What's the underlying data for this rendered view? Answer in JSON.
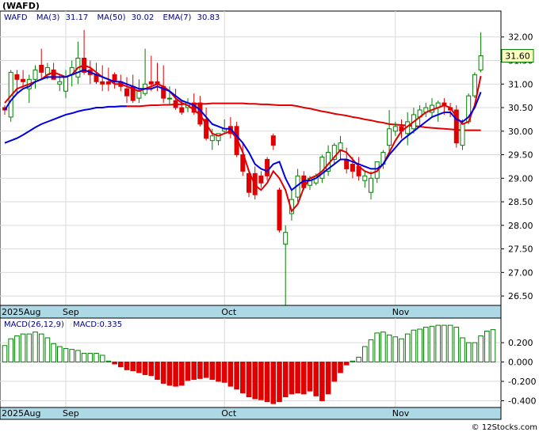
{
  "chart_data": [
    {
      "type": "candlestick",
      "title": "(WAFD)",
      "legend": {
        "symbol": "WAFD",
        "ma3_label": "MA(3)",
        "ma3_value": "31.17",
        "ma50_label": "MA(50)",
        "ma50_value": "30.02",
        "ema7_label": "EMA(7)",
        "ema7_value": "30.83"
      },
      "last_price_label": "31.60",
      "ylim": [
        26.3,
        32.55
      ],
      "ytick_labels": [
        "32.00",
        "31.50",
        "31.00",
        "30.50",
        "30.00",
        "29.50",
        "29.00",
        "28.50",
        "28.00",
        "27.50",
        "27.00",
        "26.50"
      ],
      "ytick_values": [
        32.0,
        31.5,
        31.0,
        30.5,
        30.0,
        29.5,
        29.0,
        28.5,
        28.0,
        27.5,
        27.0,
        26.5
      ],
      "ohlc": [
        [
          30.5,
          30.55,
          30.35,
          30.45
        ],
        [
          30.3,
          31.3,
          30.2,
          31.25
        ],
        [
          31.2,
          31.3,
          30.8,
          31.1
        ],
        [
          31.1,
          31.3,
          30.9,
          31.05
        ],
        [
          30.9,
          31.2,
          30.6,
          31.1
        ],
        [
          31.1,
          31.4,
          30.9,
          31.3
        ],
        [
          31.4,
          31.75,
          31.1,
          31.25
        ],
        [
          31.2,
          31.45,
          31.1,
          31.35
        ],
        [
          31.3,
          31.45,
          31.1,
          31.1
        ],
        [
          31.0,
          31.2,
          30.85,
          31.05
        ],
        [
          30.85,
          31.3,
          30.7,
          31.15
        ],
        [
          31.2,
          31.5,
          30.95,
          31.35
        ],
        [
          31.15,
          31.9,
          31.0,
          31.55
        ],
        [
          31.55,
          32.15,
          31.2,
          31.25
        ],
        [
          31.3,
          31.5,
          31.0,
          31.2
        ],
        [
          31.2,
          31.45,
          31.0,
          31.05
        ],
        [
          31.05,
          31.4,
          30.85,
          31.0
        ],
        [
          31.05,
          31.35,
          30.85,
          31.0
        ],
        [
          31.2,
          31.25,
          30.9,
          31.05
        ],
        [
          31.05,
          31.2,
          30.85,
          30.95
        ],
        [
          30.9,
          31.15,
          30.6,
          30.75
        ],
        [
          30.95,
          31.2,
          30.6,
          30.65
        ],
        [
          30.7,
          31.1,
          30.6,
          30.85
        ],
        [
          30.8,
          31.75,
          30.75,
          31.0
        ],
        [
          31.05,
          31.6,
          30.85,
          31.0
        ],
        [
          31.05,
          31.45,
          30.85,
          31.0
        ],
        [
          30.95,
          31.4,
          30.6,
          30.7
        ],
        [
          30.7,
          30.95,
          30.55,
          30.7
        ],
        [
          30.65,
          30.9,
          30.45,
          30.5
        ],
        [
          30.5,
          30.65,
          30.35,
          30.4
        ],
        [
          30.5,
          30.7,
          30.4,
          30.6
        ],
        [
          30.6,
          30.8,
          30.35,
          30.4
        ],
        [
          30.6,
          30.75,
          30.1,
          30.15
        ],
        [
          30.25,
          30.5,
          29.8,
          29.85
        ],
        [
          29.8,
          30.05,
          29.6,
          29.9
        ],
        [
          29.8,
          29.95,
          29.7,
          29.95
        ],
        [
          30.0,
          30.25,
          29.95,
          30.05
        ],
        [
          30.1,
          30.3,
          29.85,
          29.95
        ],
        [
          30.1,
          30.2,
          29.45,
          29.5
        ],
        [
          29.5,
          29.75,
          29.05,
          29.15
        ],
        [
          29.1,
          29.2,
          28.6,
          28.7
        ],
        [
          29.1,
          29.25,
          28.55,
          28.65
        ],
        [
          29.05,
          29.15,
          28.8,
          28.9
        ],
        [
          29.4,
          29.45,
          28.95,
          29.05
        ],
        [
          29.9,
          29.95,
          29.6,
          29.7
        ],
        [
          28.75,
          28.8,
          27.85,
          27.9
        ],
        [
          27.6,
          28.0,
          26.25,
          27.85
        ],
        [
          28.25,
          28.75,
          28.1,
          28.55
        ],
        [
          28.6,
          29.2,
          28.5,
          29.05
        ],
        [
          29.05,
          29.15,
          28.75,
          28.8
        ],
        [
          28.85,
          29.05,
          28.75,
          29.0
        ],
        [
          28.9,
          29.1,
          28.85,
          29.05
        ],
        [
          29.0,
          29.5,
          28.9,
          29.45
        ],
        [
          29.15,
          29.7,
          29.05,
          29.55
        ],
        [
          29.4,
          29.75,
          29.3,
          29.7
        ],
        [
          29.6,
          29.9,
          29.4,
          29.75
        ],
        [
          29.4,
          29.65,
          29.1,
          29.2
        ],
        [
          29.3,
          29.45,
          29.0,
          29.15
        ],
        [
          29.25,
          29.45,
          28.95,
          29.05
        ],
        [
          28.95,
          29.15,
          28.8,
          29.05
        ],
        [
          28.7,
          29.15,
          28.55,
          29.0
        ],
        [
          29.0,
          29.35,
          28.9,
          29.35
        ],
        [
          29.3,
          29.6,
          29.2,
          29.55
        ],
        [
          29.7,
          30.45,
          29.55,
          30.05
        ],
        [
          30.0,
          30.2,
          29.9,
          30.1
        ],
        [
          30.1,
          30.25,
          29.85,
          30.0
        ],
        [
          29.95,
          30.4,
          29.7,
          30.2
        ],
        [
          30.05,
          30.5,
          29.95,
          30.35
        ],
        [
          30.3,
          30.55,
          30.1,
          30.45
        ],
        [
          30.4,
          30.6,
          30.3,
          30.5
        ],
        [
          30.4,
          30.7,
          30.3,
          30.55
        ],
        [
          30.5,
          30.65,
          30.2,
          30.6
        ],
        [
          30.6,
          30.7,
          30.35,
          30.55
        ],
        [
          30.5,
          30.6,
          30.3,
          30.45
        ],
        [
          30.45,
          30.55,
          29.65,
          29.75
        ],
        [
          29.7,
          30.25,
          29.6,
          30.15
        ],
        [
          30.2,
          30.8,
          30.15,
          30.75
        ],
        [
          30.75,
          31.25,
          30.7,
          31.2
        ],
        [
          31.3,
          32.1,
          31.25,
          31.6
        ]
      ],
      "ma3": [
        30.6,
        30.75,
        30.9,
        30.95,
        31.0,
        31.05,
        31.1,
        31.2,
        31.25,
        31.2,
        31.15,
        31.2,
        31.35,
        31.4,
        31.35,
        31.25,
        31.15,
        31.1,
        31.0,
        31.0,
        30.95,
        30.9,
        30.85,
        30.9,
        30.95,
        31.0,
        30.95,
        30.85,
        30.7,
        30.6,
        30.55,
        30.45,
        30.35,
        30.15,
        29.95,
        29.9,
        29.95,
        30.0,
        29.85,
        29.55,
        29.15,
        28.85,
        28.75,
        28.9,
        29.15,
        29.0,
        28.75,
        28.3,
        28.45,
        28.8,
        29.0,
        29.05,
        29.15,
        29.3,
        29.45,
        29.6,
        29.55,
        29.4,
        29.25,
        29.15,
        29.1,
        29.15,
        29.3,
        29.55,
        29.8,
        30.0,
        30.1,
        30.2,
        30.3,
        30.4,
        30.45,
        30.5,
        30.55,
        30.5,
        30.3,
        30.15,
        30.2,
        30.55,
        31.17
      ],
      "ema7": [
        30.45,
        30.65,
        30.8,
        30.9,
        30.95,
        31.05,
        31.1,
        31.15,
        31.15,
        31.15,
        31.15,
        31.2,
        31.25,
        31.3,
        31.25,
        31.2,
        31.15,
        31.1,
        31.05,
        31.05,
        31.0,
        30.95,
        30.9,
        30.9,
        30.9,
        30.95,
        30.9,
        30.85,
        30.75,
        30.65,
        30.6,
        30.55,
        30.45,
        30.3,
        30.15,
        30.1,
        30.05,
        30.05,
        29.9,
        29.75,
        29.55,
        29.3,
        29.2,
        29.15,
        29.3,
        29.35,
        29.0,
        28.75,
        28.85,
        28.95,
        28.95,
        29.0,
        29.1,
        29.2,
        29.3,
        29.4,
        29.4,
        29.35,
        29.3,
        29.25,
        29.2,
        29.2,
        29.3,
        29.5,
        29.65,
        29.8,
        29.9,
        30.0,
        30.1,
        30.2,
        30.3,
        30.35,
        30.4,
        30.4,
        30.25,
        30.2,
        30.3,
        30.5,
        30.83
      ],
      "ma50": [
        29.75,
        29.8,
        29.85,
        29.92,
        30.0,
        30.08,
        30.15,
        30.2,
        30.25,
        30.3,
        30.35,
        30.38,
        30.42,
        30.45,
        30.47,
        30.5,
        30.5,
        30.52,
        30.52,
        30.53,
        30.53,
        30.53,
        30.53,
        30.54,
        30.55,
        30.55,
        30.56,
        30.56,
        30.57,
        30.57,
        30.58,
        30.58,
        30.58,
        30.58,
        30.59,
        30.59,
        30.59,
        30.59,
        30.59,
        30.59,
        30.58,
        30.58,
        30.57,
        30.57,
        30.56,
        30.55,
        30.55,
        30.55,
        30.53,
        30.5,
        30.48,
        30.45,
        30.42,
        30.4,
        30.37,
        30.35,
        30.33,
        30.3,
        30.28,
        30.25,
        30.23,
        30.2,
        30.18,
        30.15,
        30.14,
        30.13,
        30.12,
        30.11,
        30.1,
        30.08,
        30.07,
        30.06,
        30.05,
        30.04,
        30.03,
        30.02,
        30.02,
        30.02,
        30.02
      ],
      "xtick_labels": [
        {
          "label": "2025Aug",
          "index": 0
        },
        {
          "label": "Sep",
          "index": 10
        },
        {
          "label": "Oct",
          "index": 36
        },
        {
          "label": "Nov",
          "index": 64
        }
      ]
    },
    {
      "type": "bar",
      "title": "MACD(26,12,9)",
      "value_label": "MACD:0.335",
      "ylim": [
        -0.47,
        0.34
      ],
      "ytick_labels": [
        "0.200",
        "0.000",
        "-0.200",
        "-0.400"
      ],
      "ytick_values": [
        0.2,
        0.0,
        -0.2,
        -0.4
      ],
      "values": [
        0.17,
        0.24,
        0.27,
        0.29,
        0.29,
        0.31,
        0.29,
        0.25,
        0.19,
        0.16,
        0.14,
        0.13,
        0.12,
        0.09,
        0.09,
        0.09,
        0.07,
        0.01,
        -0.02,
        -0.05,
        -0.08,
        -0.09,
        -0.11,
        -0.13,
        -0.14,
        -0.18,
        -0.22,
        -0.24,
        -0.25,
        -0.24,
        -0.19,
        -0.18,
        -0.17,
        -0.16,
        -0.18,
        -0.2,
        -0.21,
        -0.25,
        -0.28,
        -0.32,
        -0.36,
        -0.38,
        -0.39,
        -0.41,
        -0.43,
        -0.41,
        -0.36,
        -0.33,
        -0.32,
        -0.33,
        -0.3,
        -0.35,
        -0.4,
        -0.33,
        -0.2,
        -0.11,
        -0.03,
        0.01,
        0.05,
        0.16,
        0.23,
        0.3,
        0.31,
        0.28,
        0.26,
        0.24,
        0.29,
        0.33,
        0.34,
        0.36,
        0.37,
        0.38,
        0.38,
        0.38,
        0.36,
        0.25,
        0.2,
        0.2,
        0.27,
        0.32,
        0.335
      ],
      "xtick_labels": [
        {
          "label": "2025Aug",
          "index": 0
        },
        {
          "label": "Sep",
          "index": 10
        },
        {
          "label": "Oct",
          "index": 36
        },
        {
          "label": "Nov",
          "index": 64
        }
      ]
    }
  ],
  "colors": {
    "up": "#008000",
    "down": "#e00000",
    "ma3": "#e00000",
    "ema7": "#0000e0",
    "ma50_early": "#0000e0",
    "ma50_late": "#e00000",
    "axis_bar": "#add8e6",
    "grid": "#d9d9d9",
    "tag_fill": "#ffffc0"
  },
  "credit": "© 12Stocks.com"
}
